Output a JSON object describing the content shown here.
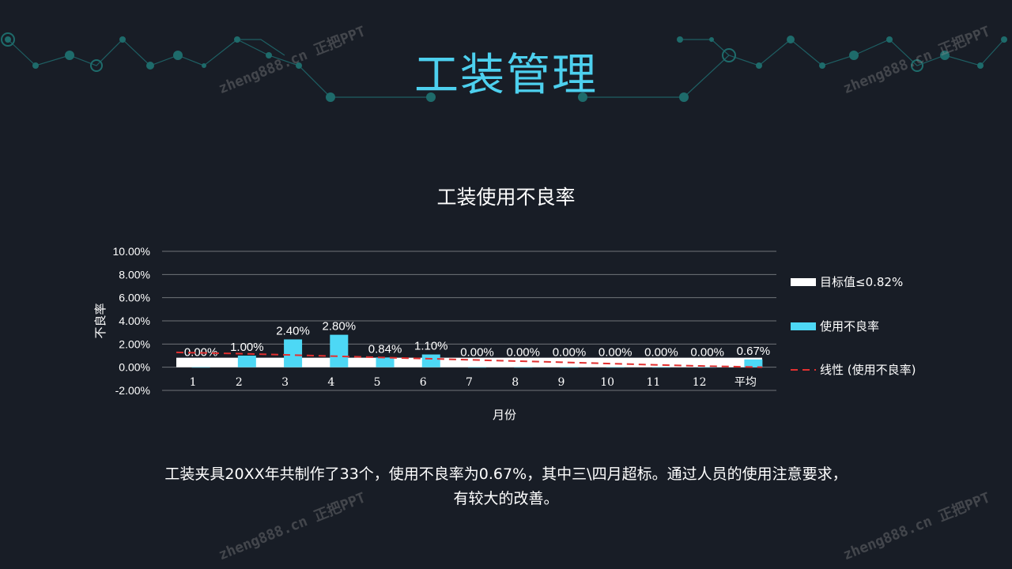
{
  "title": "工装管理",
  "chart_data": {
    "type": "bar",
    "title": "工装使用不良率",
    "xlabel": "月份",
    "ylabel": "不良率",
    "categories": [
      "1",
      "2",
      "3",
      "4",
      "5",
      "6",
      "7",
      "8",
      "9",
      "10",
      "11",
      "12",
      "平均"
    ],
    "ylim": [
      -0.02,
      0.1
    ],
    "yticks": [
      "10.00%",
      "8.00%",
      "6.00%",
      "4.00%",
      "2.00%",
      "0.00%",
      "-2.00%"
    ],
    "grid": true,
    "legend_position": "right",
    "series": [
      {
        "name": "目标值≤0.82%",
        "type": "area",
        "color": "#ffffff",
        "values": [
          0.0082,
          0.0082,
          0.0082,
          0.0082,
          0.0082,
          0.0082,
          0.0082,
          0.0082,
          0.0082,
          0.0082,
          0.0082,
          0.0082,
          0.0082
        ]
      },
      {
        "name": "使用不良率",
        "type": "bar",
        "color": "#4dd8f5",
        "values": [
          0.0,
          0.01,
          0.024,
          0.028,
          0.0084,
          0.011,
          0.0,
          0.0,
          0.0,
          0.0,
          0.0,
          0.0,
          0.0067
        ],
        "labels": [
          "0.00%",
          "1.00%",
          "2.40%",
          "2.80%",
          "0.84%",
          "1.10%",
          "0.00%",
          "0.00%",
          "0.00%",
          "0.00%",
          "0.00%",
          "0.00%",
          "0.67%"
        ]
      },
      {
        "name": "线性 (使用不良率)",
        "type": "trendline",
        "color": "#e03030",
        "values": [
          0.0128,
          0.0117,
          0.0107,
          0.0096,
          0.0085,
          0.0075,
          0.0064,
          0.0053,
          0.0043,
          0.0032,
          0.0021,
          0.0011,
          0.0
        ]
      }
    ]
  },
  "summary": {
    "line1": "工装夹具20XX年共制作了33个，使用不良率为0.67%，其中三\\四月超标。通过人员的使用注意要求，",
    "line2": "有较大的改善。"
  },
  "watermark": "zheng888.cn 正把PPT",
  "colors": {
    "background": "#181d26",
    "accent": "#4dd0ee",
    "deco": "#1f6b6b"
  }
}
